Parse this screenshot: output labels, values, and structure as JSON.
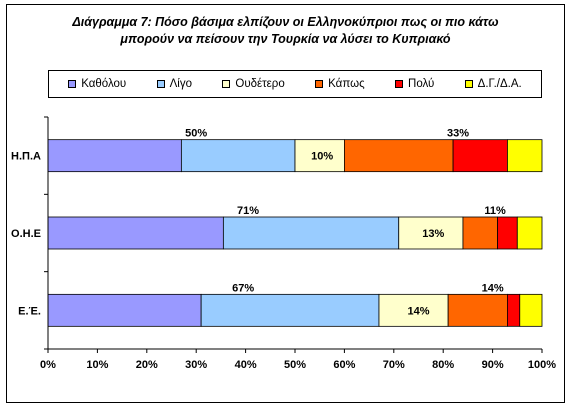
{
  "chart_data": {
    "type": "bar",
    "orientation": "horizontal",
    "stacked": true,
    "title_lines": [
      "Διάγραμμα 7: Πόσο βάσιμα ελπίζουν οι Ελληνοκύπριοι πως οι πιο κάτω",
      "μπορούν να πείσουν την Τουρκία να λύσει το Κυπριακό"
    ],
    "categories": [
      "Η.Π.Α",
      "Ο.Η.Ε",
      "Ε.Έ."
    ],
    "series": [
      {
        "name": "Καθόλου",
        "color": "#9999ff",
        "values": [
          27,
          35.5,
          31
        ]
      },
      {
        "name": "Λίγο",
        "color": "#99ccff",
        "values": [
          23,
          35.5,
          36
        ]
      },
      {
        "name": "Ουδέτερο",
        "color": "#ffffcc",
        "values": [
          10,
          13,
          14
        ]
      },
      {
        "name": "Κάπως",
        "color": "#ff6600",
        "values": [
          22,
          7,
          12
        ]
      },
      {
        "name": "Πολύ",
        "color": "#ff0000",
        "values": [
          11,
          4,
          2.5
        ]
      },
      {
        "name": "Δ.Γ./Δ.Α.",
        "color": "#ffff00",
        "values": [
          7,
          5,
          4.5
        ]
      }
    ],
    "annotations": [
      {
        "category": "Η.Π.Α",
        "text": "50%",
        "x": 30
      },
      {
        "category": "Η.Π.Α",
        "text": "10%",
        "x": 55.5,
        "inside": true
      },
      {
        "category": "Η.Π.Α",
        "text": "33%",
        "x": 83
      },
      {
        "category": "Ο.Η.Ε",
        "text": "71%",
        "x": 40.5
      },
      {
        "category": "Ο.Η.Ε",
        "text": "13%",
        "x": 78,
        "inside": true
      },
      {
        "category": "Ο.Η.Ε",
        "text": "11%",
        "x": 90.5
      },
      {
        "category": "Ε.Έ.",
        "text": "67%",
        "x": 39.5
      },
      {
        "category": "Ε.Έ.",
        "text": "14%",
        "x": 75,
        "inside": true
      },
      {
        "category": "Ε.Έ.",
        "text": "14%",
        "x": 90
      }
    ],
    "x_ticks": [
      "0%",
      "10%",
      "20%",
      "30%",
      "40%",
      "50%",
      "60%",
      "70%",
      "80%",
      "90%",
      "100%"
    ],
    "xlim": [
      0,
      100
    ],
    "grid": false,
    "legend_position": "top"
  }
}
